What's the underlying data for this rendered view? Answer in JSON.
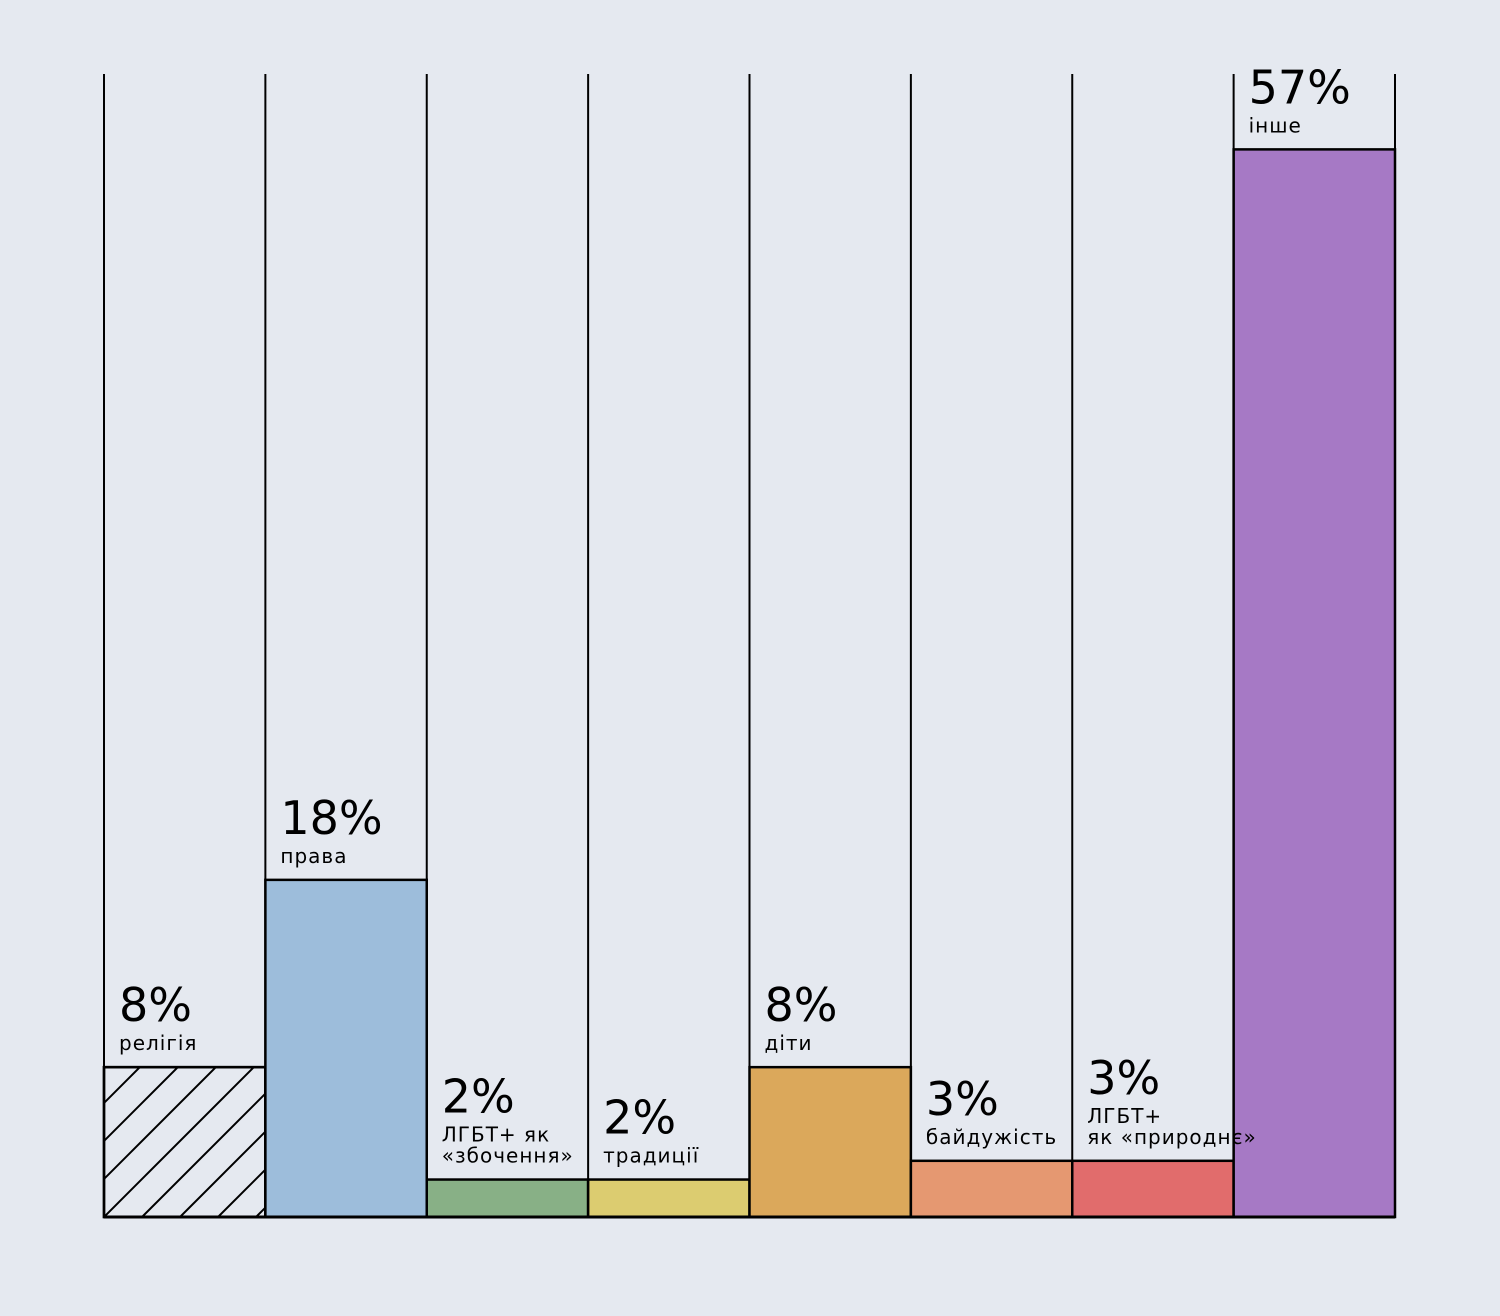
{
  "colors": {
    "background": "#e5e9f0",
    "outline": "#000000"
  },
  "chart_data": {
    "type": "bar",
    "value_unit": "%",
    "ylim": [
      0,
      60
    ],
    "grid": false,
    "legend": "none",
    "categories": [
      {
        "label": "релігія",
        "value_label": "8%",
        "value": 8,
        "color": "#e5e9f0",
        "fill": "hatch"
      },
      {
        "label": "права",
        "value_label": "18%",
        "value": 18,
        "color": "#9dbddb",
        "fill": "solid"
      },
      {
        "label": "ЛГБТ+ як «збочення»",
        "label_lines": [
          "ЛГБТ+ як",
          "«збочення»"
        ],
        "value_label": "2%",
        "value": 2,
        "color": "#88b086",
        "fill": "solid"
      },
      {
        "label": "традиції",
        "value_label": "2%",
        "value": 2,
        "color": "#dccc70",
        "fill": "solid"
      },
      {
        "label": "діти",
        "value_label": "8%",
        "value": 8,
        "color": "#dba85b",
        "fill": "solid"
      },
      {
        "label": "байдужість",
        "value_label": "3%",
        "value": 3,
        "color": "#e59871",
        "fill": "solid"
      },
      {
        "label": "ЛГБТ+ як «природнє»",
        "label_lines": [
          "ЛГБТ+",
          "як «природнє»"
        ],
        "value_label": "3%",
        "value": 3,
        "color": "#e16c6c",
        "fill": "solid"
      },
      {
        "label": "інше",
        "value_label": "57%",
        "value": 57,
        "color": "#a679c5",
        "fill": "solid"
      }
    ]
  }
}
